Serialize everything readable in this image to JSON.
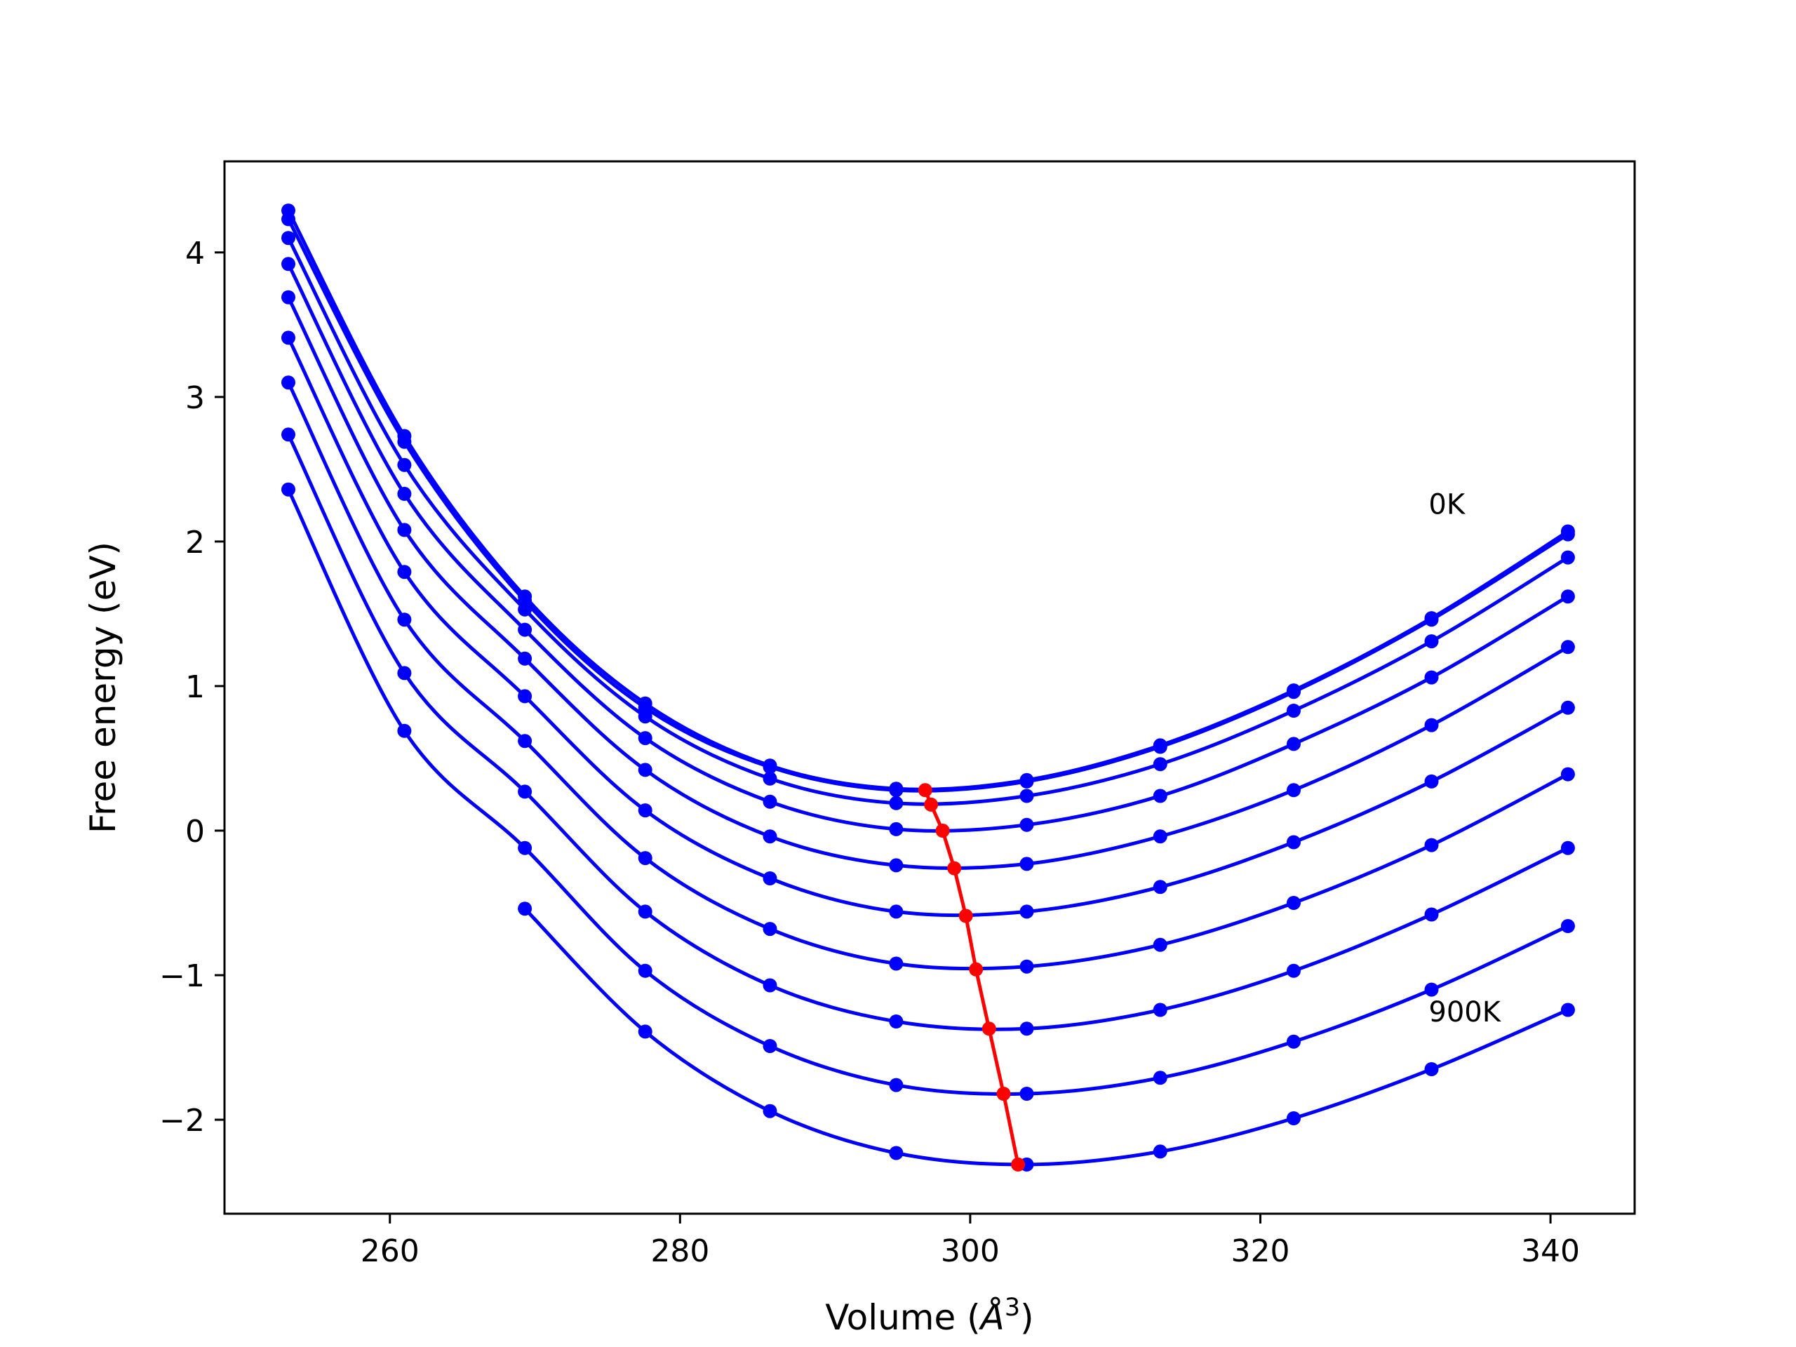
{
  "chart_data": {
    "type": "line",
    "title": "",
    "xlabel": "Volume (",
    "xlabel_unit": "Å",
    "xlabel_power": "3",
    "xlabel_close": ")",
    "ylabel": "Free energy (eV)",
    "xlim": [
      248.6,
      345.8
    ],
    "ylim": [
      -2.65,
      4.63
    ],
    "xticks": [
      260,
      280,
      300,
      320,
      340
    ],
    "xtick_labels": [
      "260",
      "280",
      "300",
      "320",
      "340"
    ],
    "yticks": [
      -2,
      -1,
      0,
      1,
      2,
      3,
      4
    ],
    "ytick_labels": [
      "−2",
      "−1",
      "0",
      "1",
      "2",
      "3",
      "4"
    ],
    "grid": false,
    "legend": "none",
    "colors": {
      "series": "#0000ff",
      "minima": "#ff0000"
    },
    "annotations": [
      {
        "text": "0K",
        "x": 331.6,
        "y": 2.19
      },
      {
        "text": "900K",
        "x": 331.6,
        "y": -1.32
      }
    ],
    "x": [
      253.0,
      261.0,
      269.3,
      277.6,
      286.2,
      294.9,
      303.9,
      313.1,
      322.3,
      331.8,
      341.2
    ],
    "series": [
      {
        "values": [
          4.29,
          2.73,
          1.62,
          0.88,
          0.45,
          0.29,
          0.35,
          0.59,
          0.97,
          1.47,
          2.07
        ]
      },
      {
        "values": [
          4.23,
          2.69,
          1.59,
          0.85,
          0.44,
          0.28,
          0.34,
          0.58,
          0.96,
          1.46,
          2.05
        ]
      },
      {
        "values": [
          4.1,
          2.53,
          1.53,
          0.79,
          0.36,
          0.19,
          0.24,
          0.46,
          0.83,
          1.31,
          1.89
        ]
      },
      {
        "values": [
          3.92,
          2.33,
          1.39,
          0.64,
          0.2,
          0.01,
          0.04,
          0.24,
          0.6,
          1.06,
          1.62
        ]
      },
      {
        "values": [
          3.69,
          2.08,
          1.19,
          0.42,
          -0.04,
          -0.24,
          -0.23,
          -0.04,
          0.28,
          0.73,
          1.27
        ]
      },
      {
        "values": [
          3.41,
          1.79,
          0.93,
          0.14,
          -0.33,
          -0.56,
          -0.56,
          -0.39,
          -0.08,
          0.34,
          0.85
        ]
      },
      {
        "values": [
          3.1,
          1.46,
          0.62,
          -0.19,
          -0.68,
          -0.92,
          -0.94,
          -0.79,
          -0.5,
          -0.1,
          0.39
        ]
      },
      {
        "values": [
          2.74,
          1.09,
          0.27,
          -0.56,
          -1.07,
          -1.32,
          -1.37,
          -1.24,
          -0.97,
          -0.58,
          -0.12
        ]
      },
      {
        "values": [
          2.36,
          0.69,
          -0.12,
          -0.97,
          -1.49,
          -1.76,
          -1.82,
          -1.71,
          -1.46,
          -1.1,
          -0.66
        ]
      },
      {
        "values": [
          null,
          null,
          -0.54,
          -1.39,
          -1.94,
          -2.23,
          -2.31,
          -2.22,
          -1.99,
          -1.65,
          -1.24
        ]
      }
    ],
    "minima": {
      "x": [
        296.9,
        297.3,
        298.1,
        298.9,
        299.7,
        300.4,
        301.3,
        302.3,
        303.3
      ],
      "y": [
        0.28,
        0.18,
        0.0,
        -0.26,
        -0.59,
        -0.96,
        -1.37,
        -1.82,
        -2.31
      ]
    }
  }
}
